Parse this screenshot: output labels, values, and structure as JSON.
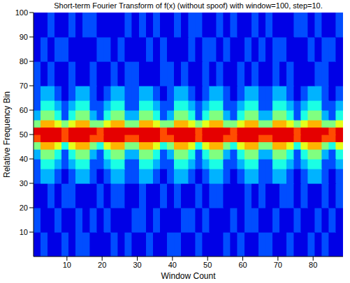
{
  "chart_data": {
    "type": "heatmap",
    "title": "Short-term Fourier Transform of f(x) (without spoof) with window=100, step=10.",
    "x_label": "Window Count",
    "y_label": "Relative Frequency Bin",
    "color": "jet",
    "xlim": [
      0.5,
      88.5
    ],
    "ylim": [
      0,
      100
    ],
    "xticks": [
      10,
      20,
      30,
      40,
      50,
      60,
      70,
      80
    ],
    "yticks": [
      10,
      20,
      30,
      40,
      50,
      60,
      70,
      80,
      90,
      100
    ],
    "zlim": [
      0,
      10
    ],
    "x_edges": [
      0.5,
      2.5,
      4.5,
      6.5,
      8.5,
      10.5,
      12.5,
      14.5,
      16.5,
      18.5,
      20.5,
      22.5,
      24.5,
      26.5,
      28.5,
      30.5,
      32.5,
      34.5,
      36.5,
      38.5,
      40.5,
      42.5,
      44.5,
      46.5,
      48.5,
      50.5,
      52.5,
      54.5,
      56.5,
      58.5,
      60.5,
      62.5,
      64.5,
      66.5,
      68.5,
      70.5,
      72.5,
      74.5,
      76.5,
      78.5,
      80.5,
      82.5,
      84.5,
      86.5,
      88.5
    ],
    "y_edges": [
      0,
      10,
      20,
      30,
      36,
      40,
      44,
      47,
      50,
      53,
      56,
      60,
      64,
      70,
      80,
      90,
      100
    ],
    "cells": [
      [
        1,
        2,
        1,
        1,
        2,
        1,
        2,
        2,
        1,
        1,
        1,
        2,
        1,
        2,
        1,
        1,
        2,
        1,
        1,
        2,
        2,
        1,
        1,
        2,
        1,
        1,
        1,
        2,
        1,
        2,
        1,
        1,
        2,
        2,
        1,
        1,
        2,
        1,
        1,
        2,
        1,
        2,
        1,
        1
      ],
      [
        2,
        1,
        1,
        2,
        1,
        1,
        2,
        1,
        2,
        1,
        2,
        1,
        1,
        1,
        2,
        2,
        1,
        2,
        1,
        1,
        1,
        2,
        2,
        1,
        2,
        1,
        1,
        1,
        2,
        1,
        2,
        2,
        1,
        1,
        2,
        1,
        1,
        2,
        1,
        1,
        2,
        1,
        2,
        1
      ],
      [
        1,
        1,
        2,
        1,
        2,
        2,
        1,
        1,
        1,
        2,
        1,
        2,
        2,
        1,
        1,
        2,
        1,
        1,
        2,
        1,
        2,
        1,
        1,
        2,
        1,
        2,
        2,
        1,
        1,
        1,
        2,
        1,
        2,
        1,
        1,
        2,
        2,
        1,
        2,
        1,
        1,
        2,
        1,
        2
      ],
      [
        2,
        3,
        3,
        2,
        1,
        2,
        3,
        3,
        2,
        1,
        2,
        3,
        3,
        2,
        2,
        3,
        3,
        2,
        1,
        2,
        3,
        3,
        2,
        1,
        2,
        3,
        3,
        2,
        1,
        2,
        3,
        3,
        2,
        2,
        3,
        3,
        2,
        1,
        2,
        3,
        3,
        2,
        1,
        2
      ],
      [
        2,
        4,
        4,
        3,
        2,
        3,
        4,
        4,
        2,
        2,
        3,
        4,
        4,
        2,
        2,
        4,
        4,
        3,
        2,
        2,
        4,
        4,
        3,
        2,
        3,
        4,
        4,
        2,
        2,
        3,
        4,
        4,
        2,
        2,
        4,
        4,
        3,
        2,
        3,
        4,
        4,
        2,
        2,
        3
      ],
      [
        3,
        5,
        5,
        4,
        2,
        4,
        5,
        5,
        3,
        2,
        4,
        5,
        5,
        3,
        3,
        5,
        5,
        4,
        2,
        3,
        5,
        5,
        4,
        2,
        4,
        5,
        5,
        3,
        2,
        4,
        5,
        5,
        3,
        3,
        5,
        5,
        4,
        2,
        4,
        5,
        5,
        3,
        2,
        4
      ],
      [
        5,
        7,
        7,
        6,
        4,
        6,
        7,
        7,
        5,
        4,
        6,
        7,
        7,
        5,
        5,
        7,
        7,
        6,
        4,
        5,
        7,
        7,
        6,
        4,
        6,
        7,
        7,
        5,
        4,
        6,
        7,
        7,
        5,
        5,
        7,
        7,
        6,
        4,
        6,
        7,
        7,
        5,
        4,
        6
      ],
      [
        8,
        9,
        9,
        9,
        8,
        9,
        9,
        9,
        8,
        8,
        9,
        9,
        9,
        8,
        8,
        9,
        9,
        9,
        8,
        8,
        9,
        9,
        9,
        8,
        9,
        9,
        9,
        8,
        8,
        9,
        9,
        9,
        8,
        8,
        9,
        9,
        9,
        8,
        9,
        9,
        9,
        8,
        8,
        9
      ],
      [
        9,
        9,
        9,
        9,
        8,
        9,
        9,
        9,
        9,
        8,
        9,
        9,
        9,
        9,
        9,
        9,
        9,
        9,
        8,
        9,
        9,
        9,
        9,
        8,
        9,
        9,
        9,
        9,
        8,
        9,
        9,
        9,
        9,
        9,
        9,
        9,
        9,
        8,
        9,
        9,
        9,
        9,
        8,
        9
      ],
      [
        5,
        7,
        7,
        6,
        5,
        6,
        7,
        7,
        5,
        5,
        6,
        7,
        7,
        5,
        5,
        7,
        7,
        6,
        5,
        5,
        7,
        7,
        6,
        5,
        6,
        7,
        7,
        5,
        5,
        6,
        7,
        7,
        5,
        5,
        7,
        7,
        6,
        5,
        6,
        7,
        7,
        5,
        5,
        6
      ],
      [
        3,
        5,
        5,
        4,
        2,
        4,
        5,
        5,
        3,
        2,
        4,
        5,
        5,
        3,
        3,
        5,
        5,
        4,
        2,
        3,
        5,
        5,
        4,
        2,
        4,
        5,
        5,
        3,
        2,
        4,
        5,
        5,
        3,
        3,
        5,
        5,
        4,
        2,
        4,
        5,
        5,
        3,
        2,
        4
      ],
      [
        2,
        4,
        4,
        3,
        2,
        3,
        4,
        4,
        2,
        2,
        3,
        4,
        4,
        2,
        2,
        4,
        4,
        3,
        2,
        2,
        4,
        4,
        3,
        2,
        3,
        4,
        4,
        2,
        2,
        3,
        4,
        4,
        2,
        2,
        4,
        4,
        3,
        2,
        3,
        4,
        4,
        2,
        2,
        3
      ],
      [
        2,
        3,
        3,
        2,
        1,
        2,
        3,
        3,
        2,
        1,
        2,
        3,
        3,
        2,
        2,
        3,
        3,
        2,
        1,
        2,
        3,
        3,
        2,
        1,
        2,
        3,
        3,
        2,
        1,
        2,
        3,
        3,
        2,
        2,
        3,
        3,
        2,
        1,
        2,
        3,
        3,
        2,
        1,
        2
      ],
      [
        2,
        1,
        2,
        1,
        1,
        2,
        1,
        1,
        2,
        1,
        1,
        2,
        1,
        2,
        2,
        1,
        1,
        1,
        2,
        2,
        1,
        2,
        1,
        1,
        2,
        1,
        2,
        1,
        1,
        2,
        1,
        2,
        1,
        1,
        2,
        1,
        2,
        1,
        1,
        1,
        2,
        2,
        1,
        1
      ],
      [
        1,
        2,
        1,
        2,
        2,
        1,
        1,
        1,
        1,
        2,
        2,
        1,
        2,
        1,
        1,
        1,
        2,
        1,
        2,
        1,
        1,
        1,
        2,
        1,
        2,
        2,
        1,
        2,
        1,
        1,
        2,
        1,
        2,
        1,
        2,
        2,
        1,
        1,
        1,
        2,
        1,
        2,
        2,
        1
      ],
      [
        1,
        1,
        2,
        1,
        1,
        2,
        1,
        2,
        2,
        1,
        1,
        1,
        1,
        2,
        1,
        2,
        1,
        2,
        1,
        1,
        2,
        1,
        2,
        2,
        1,
        1,
        2,
        1,
        2,
        1,
        1,
        2,
        1,
        2,
        1,
        1,
        1,
        2,
        2,
        1,
        2,
        1,
        1,
        2
      ]
    ]
  }
}
